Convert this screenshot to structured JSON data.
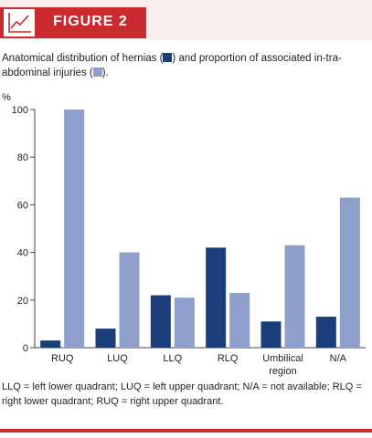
{
  "figure": {
    "label": "FIGURE 2",
    "caption_parts": [
      "Anatomical distribution of hernias (",
      ") and proportion of associated in-tra-abdominal injuries (",
      ")."
    ],
    "footnote": "LLQ = left lower quadrant; LUQ = left upper quadrant; N/A = not available; RLQ = right lower quadrant; RUQ = right upper quadrant.",
    "colors": {
      "accent": "#c9292f",
      "series_dark": "#1b3d7a",
      "series_light": "#8f9fcc"
    },
    "icon": "line-chart-icon"
  },
  "chart_data": {
    "type": "bar",
    "ylabel": "%",
    "ylim": [
      0,
      100
    ],
    "yticks": [
      0,
      20,
      40,
      60,
      80,
      100
    ],
    "categories": [
      "RUQ",
      "LUQ",
      "LLQ",
      "RLQ",
      "Umbilical region",
      "N/A"
    ],
    "category_lines": [
      [
        "RUQ"
      ],
      [
        "LUQ"
      ],
      [
        "LLQ"
      ],
      [
        "RLQ"
      ],
      [
        "Umbilical",
        "region"
      ],
      [
        "N/A"
      ]
    ],
    "series": [
      {
        "values": [
          3,
          8,
          22,
          42,
          11,
          13
        ],
        "color": "#1b3d7a"
      },
      {
        "values": [
          100,
          40,
          21,
          23,
          43,
          63
        ],
        "color": "#8f9fcc"
      }
    ],
    "grid": false,
    "legend": "inline-caption"
  }
}
